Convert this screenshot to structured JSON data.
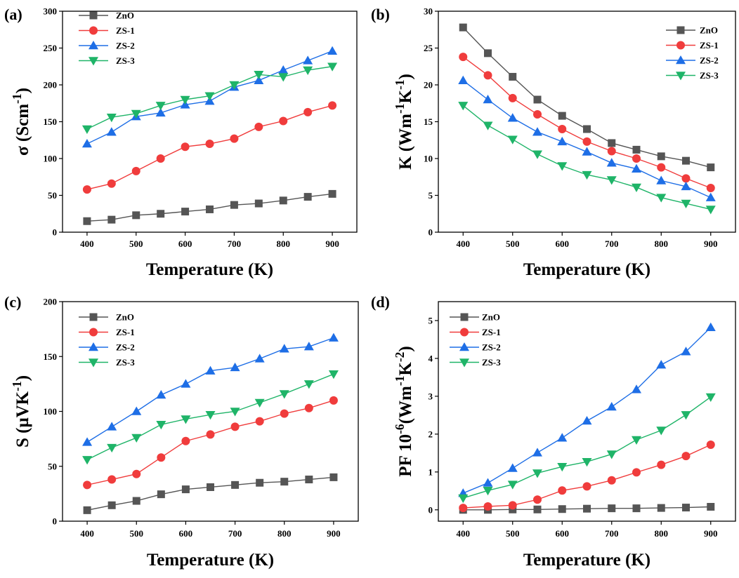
{
  "colors": {
    "ZnO": "#555555",
    "ZS-1": "#f03c3c",
    "ZS-2": "#1e6ee6",
    "ZS-3": "#1fb468"
  },
  "markers": {
    "ZnO": "square",
    "ZS-1": "circle",
    "ZS-2": "triangle-up",
    "ZS-3": "triangle-down"
  },
  "chart_data": [
    {
      "type": "line",
      "panel_label": "(a)",
      "xlabel": "Temperature (K)",
      "ylabel": "σ (Scm⁻¹)",
      "ylabel_base": "σ (Scm",
      "ylabel_sup": "-1",
      "ylabel_end": ")",
      "xlim": [
        350,
        950
      ],
      "ylim": [
        0,
        300
      ],
      "xticks": [
        400,
        500,
        600,
        700,
        800,
        900
      ],
      "yticks": [
        0,
        50,
        100,
        150,
        200,
        250,
        300
      ],
      "legend_position": "top-left",
      "x": [
        400,
        450,
        500,
        550,
        600,
        650,
        700,
        750,
        800,
        850,
        900
      ],
      "series": [
        {
          "name": "ZnO",
          "values": [
            15,
            17,
            23,
            25,
            28,
            31,
            37,
            39,
            43,
            48,
            52
          ]
        },
        {
          "name": "ZS-1",
          "values": [
            58,
            66,
            83,
            100,
            116,
            120,
            127,
            143,
            151,
            163,
            172
          ]
        },
        {
          "name": "ZS-2",
          "values": [
            120,
            136,
            157,
            162,
            173,
            178,
            197,
            206,
            220,
            233,
            246
          ]
        },
        {
          "name": "ZS-3",
          "values": [
            140,
            156,
            161,
            172,
            180,
            185,
            200,
            214,
            211,
            220,
            225
          ]
        }
      ]
    },
    {
      "type": "line",
      "panel_label": "(b)",
      "xlabel": "Temperature (K)",
      "ylabel": "K (Wm⁻¹K⁻¹)",
      "ylabel_base": "K (Wm",
      "ylabel_sup": "-1",
      "ylabel_mid": "K",
      "ylabel_sup2": "-1",
      "ylabel_end": ")",
      "xlim": [
        350,
        950
      ],
      "ylim": [
        0,
        30
      ],
      "xticks": [
        400,
        500,
        600,
        700,
        800,
        900
      ],
      "yticks": [
        0,
        5,
        10,
        15,
        20,
        25,
        30
      ],
      "legend_position": "top-right",
      "x": [
        400,
        450,
        500,
        550,
        600,
        650,
        700,
        750,
        800,
        850,
        900
      ],
      "series": [
        {
          "name": "ZnO",
          "values": [
            27.8,
            24.3,
            21.1,
            18.0,
            15.8,
            14.0,
            12.1,
            11.2,
            10.3,
            9.7,
            8.8
          ]
        },
        {
          "name": "ZS-1",
          "values": [
            23.8,
            21.3,
            18.2,
            16.0,
            14.0,
            12.3,
            11.0,
            10.0,
            8.8,
            7.3,
            6.0
          ]
        },
        {
          "name": "ZS-2",
          "values": [
            20.6,
            18.0,
            15.5,
            13.6,
            12.3,
            10.9,
            9.4,
            8.6,
            7.0,
            6.2,
            4.7
          ]
        },
        {
          "name": "ZS-3",
          "values": [
            17.2,
            14.5,
            12.6,
            10.6,
            9.0,
            7.8,
            7.1,
            6.1,
            4.7,
            3.9,
            3.1
          ]
        }
      ]
    },
    {
      "type": "line",
      "panel_label": "(c)",
      "xlabel": "Temperature (K)",
      "ylabel": "S (μVK⁻¹)",
      "ylabel_base": "S (μVK",
      "ylabel_sup": "-1",
      "ylabel_end": ")",
      "xlim": [
        350,
        950
      ],
      "ylim": [
        0,
        200
      ],
      "xticks": [
        400,
        500,
        600,
        700,
        800,
        900
      ],
      "yticks": [
        0,
        50,
        100,
        150,
        200
      ],
      "legend_position": "top-left",
      "x": [
        400,
        450,
        500,
        550,
        600,
        650,
        700,
        750,
        800,
        850,
        900
      ],
      "series": [
        {
          "name": "ZnO",
          "values": [
            10,
            14.5,
            18.5,
            24.5,
            29,
            31,
            33,
            35,
            36,
            38,
            40
          ]
        },
        {
          "name": "ZS-1",
          "values": [
            33,
            38,
            43,
            58,
            73,
            79,
            86,
            91,
            98,
            103,
            110
          ]
        },
        {
          "name": "ZS-2",
          "values": [
            72,
            86,
            100,
            115,
            125,
            137,
            140,
            148,
            157,
            159,
            167
          ]
        },
        {
          "name": "ZS-3",
          "values": [
            56,
            67,
            76,
            88,
            93,
            97,
            100,
            108,
            116,
            125,
            134
          ]
        }
      ]
    },
    {
      "type": "line",
      "panel_label": "(d)",
      "xlabel": "Temperature (K)",
      "ylabel": "PF 10⁻⁶(Wm⁻¹K⁻²)",
      "ylabel_base": "PF 10",
      "ylabel_sup": "-6",
      "ylabel_mid": "(Wm",
      "ylabel_sup2": "-1",
      "ylabel_mid2": "K",
      "ylabel_sup3": "-2",
      "ylabel_end": ")",
      "xlim": [
        350,
        950
      ],
      "ylim": [
        -0.3,
        5.5
      ],
      "xticks": [
        400,
        500,
        600,
        700,
        800,
        900
      ],
      "yticks": [
        0,
        1,
        2,
        3,
        4,
        5
      ],
      "legend_position": "top-left",
      "x": [
        400,
        450,
        500,
        550,
        600,
        650,
        700,
        750,
        800,
        850,
        900
      ],
      "series": [
        {
          "name": "ZnO",
          "values": [
            0.0,
            0.0,
            0.01,
            0.01,
            0.02,
            0.03,
            0.04,
            0.04,
            0.05,
            0.06,
            0.08
          ]
        },
        {
          "name": "ZS-1",
          "values": [
            0.05,
            0.09,
            0.12,
            0.27,
            0.51,
            0.62,
            0.78,
            0.99,
            1.19,
            1.42,
            1.72
          ]
        },
        {
          "name": "ZS-2",
          "values": [
            0.44,
            0.71,
            1.1,
            1.51,
            1.9,
            2.35,
            2.72,
            3.18,
            3.83,
            4.18,
            4.82
          ]
        },
        {
          "name": "ZS-3",
          "values": [
            0.31,
            0.51,
            0.67,
            0.97,
            1.14,
            1.27,
            1.47,
            1.85,
            2.1,
            2.51,
            2.98
          ]
        }
      ]
    }
  ]
}
